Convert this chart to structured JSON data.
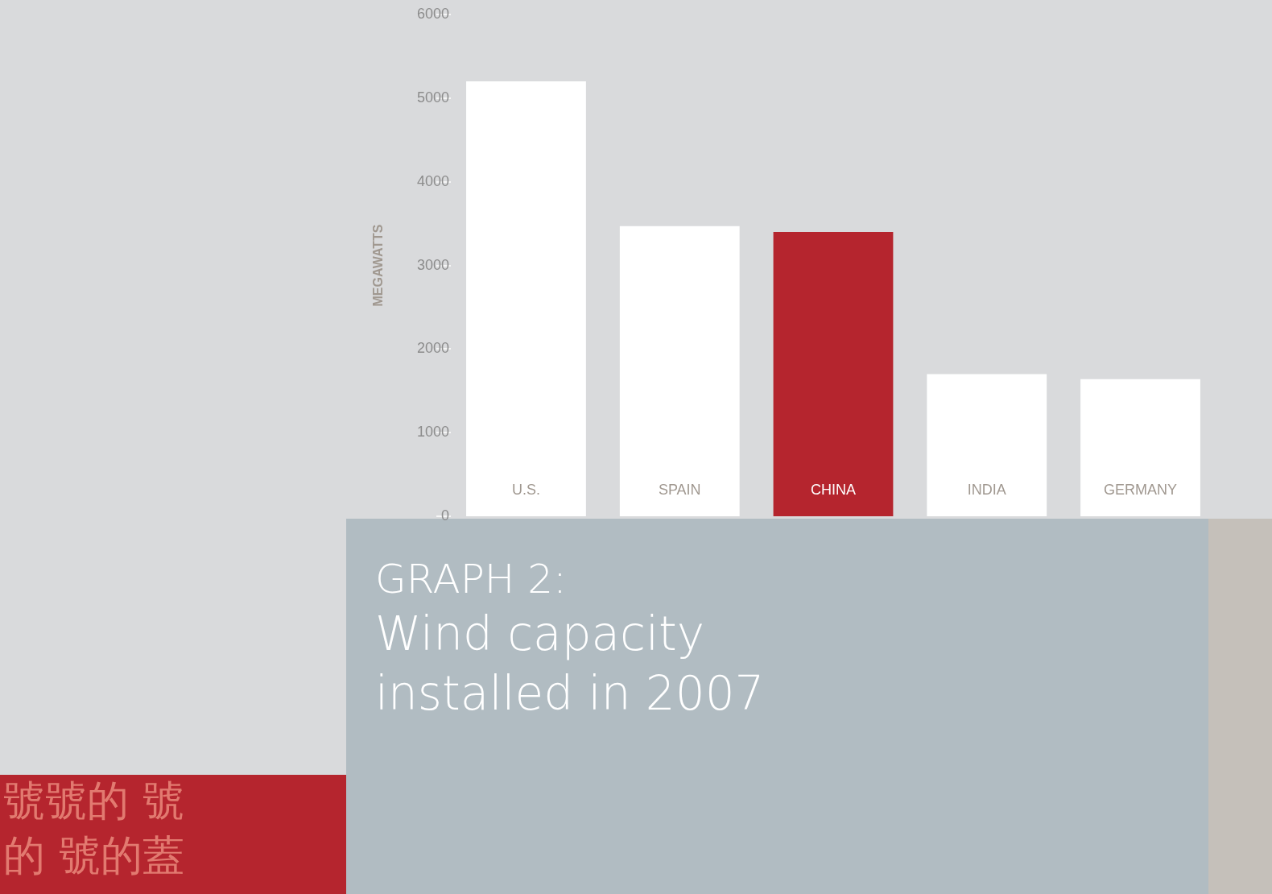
{
  "chart_data": {
    "type": "bar",
    "title": "GRAPH 2:",
    "subtitle": "Wind capacity installed in 2007",
    "ylabel": "MEGAWATTS",
    "categories": [
      "U.S.",
      "SPAIN",
      "CHINA",
      "INDIA",
      "GERMANY"
    ],
    "values": [
      5200,
      3470,
      3400,
      1700,
      1640
    ],
    "colors": [
      "#ffffff",
      "#ffffff",
      "#b5252e",
      "#ffffff",
      "#ffffff"
    ],
    "ylim": [
      0,
      6000
    ],
    "yticks": [
      0,
      1000,
      2000,
      3000,
      4000,
      5000,
      6000
    ],
    "annotations": [
      "號號的 號",
      "的 號的蓋"
    ]
  }
}
